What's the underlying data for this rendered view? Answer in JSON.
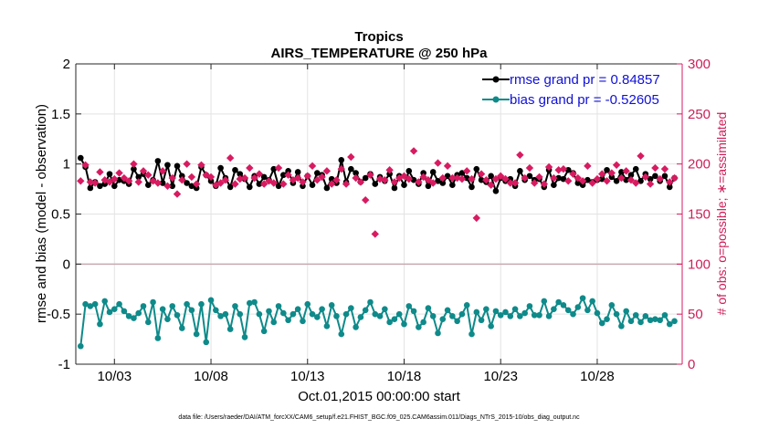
{
  "chart_data": {
    "type": "line",
    "title": "Tropics",
    "subtitle": "AIRS_TEMPERATURE @ 250 hPa",
    "xlabel": "Oct.01,2015 00:00:00 start",
    "ylabel": "rmse and bias (model - observation)",
    "y2label": "# of obs: o=possible; ∗=assimilated",
    "footnote": "data file: /Users/raeder/DAI/ATM_forcXX/CAM6_setup/f.e21.FHIST_BGC.f09_025.CAM6assim.011/Diags_NTrS_2015-10/obs_diag_output.nc",
    "xlim": [
      1,
      32.4
    ],
    "ylim": [
      -1,
      2
    ],
    "y2lim": [
      0,
      300
    ],
    "x_ticks": [
      3,
      8,
      13,
      18,
      23,
      28
    ],
    "x_tick_labels": [
      "10/03",
      "10/08",
      "10/13",
      "10/18",
      "10/23",
      "10/28"
    ],
    "y_ticks": [
      -1,
      -0.5,
      0,
      0.5,
      1,
      1.5,
      2
    ],
    "y_tick_labels": [
      "-1",
      "-0.5",
      "0",
      "0.5",
      "1",
      "1.5",
      "2"
    ],
    "y2_ticks": [
      0,
      50,
      100,
      150,
      200,
      250,
      300
    ],
    "y2_tick_labels": [
      "0",
      "50",
      "100",
      "150",
      "200",
      "250",
      "300"
    ],
    "grid": true,
    "legend_position": "top-right",
    "x": [
      1.25,
      1.5,
      1.75,
      2.0,
      2.25,
      2.5,
      2.75,
      3.0,
      3.25,
      3.5,
      3.75,
      4.0,
      4.25,
      4.5,
      4.75,
      5.0,
      5.25,
      5.5,
      5.75,
      6.0,
      6.25,
      6.5,
      6.75,
      7.0,
      7.25,
      7.5,
      7.75,
      8.0,
      8.25,
      8.5,
      8.75,
      9.0,
      9.25,
      9.5,
      9.75,
      10.0,
      10.25,
      10.5,
      10.75,
      11.0,
      11.25,
      11.5,
      11.75,
      12.0,
      12.25,
      12.5,
      12.75,
      13.0,
      13.25,
      13.5,
      13.75,
      14.0,
      14.25,
      14.5,
      14.75,
      15.0,
      15.25,
      15.5,
      15.75,
      16.0,
      16.25,
      16.5,
      16.75,
      17.0,
      17.25,
      17.5,
      17.75,
      18.0,
      18.25,
      18.5,
      18.75,
      19.0,
      19.25,
      19.5,
      19.75,
      20.0,
      20.25,
      20.5,
      20.75,
      21.0,
      21.25,
      21.5,
      21.75,
      22.0,
      22.25,
      22.5,
      22.75,
      23.0,
      23.25,
      23.5,
      23.75,
      24.0,
      24.25,
      24.5,
      24.75,
      25.0,
      25.25,
      25.5,
      25.75,
      26.0,
      26.25,
      26.5,
      26.75,
      27.0,
      27.25,
      27.5,
      27.75,
      28.0,
      28.25,
      28.5,
      28.75,
      29.0,
      29.25,
      29.5,
      29.75,
      30.0,
      30.25,
      30.5,
      30.75,
      31.0,
      31.25,
      31.5,
      31.75,
      32.0
    ],
    "series": [
      {
        "name": "rmse grand pr = 0.84857",
        "color": "#000000",
        "axis": "left",
        "marker": "circle",
        "values": [
          1.06,
          0.97,
          0.76,
          0.82,
          0.78,
          0.8,
          0.9,
          0.78,
          0.84,
          0.83,
          0.8,
          0.95,
          0.87,
          0.9,
          0.79,
          0.84,
          1.03,
          0.81,
          0.99,
          0.78,
          0.98,
          0.88,
          0.81,
          0.78,
          0.76,
          0.97,
          0.89,
          0.83,
          0.78,
          0.96,
          0.86,
          0.77,
          0.94,
          0.9,
          0.85,
          0.77,
          0.88,
          0.8,
          0.87,
          0.84,
          0.95,
          0.78,
          0.89,
          0.93,
          0.81,
          0.92,
          0.78,
          0.88,
          0.79,
          0.91,
          0.89,
          0.76,
          0.85,
          0.81,
          1.04,
          0.82,
          0.95,
          0.91,
          0.82,
          0.86,
          0.9,
          0.8,
          0.87,
          0.83,
          0.9,
          0.76,
          0.88,
          0.79,
          0.93,
          0.84,
          0.8,
          0.91,
          0.78,
          0.92,
          0.83,
          0.81,
          0.88,
          0.79,
          0.89,
          0.91,
          0.86,
          0.77,
          0.95,
          0.84,
          0.82,
          0.88,
          0.73,
          0.86,
          0.83,
          0.85,
          0.78,
          0.93,
          0.84,
          0.88,
          0.84,
          0.85,
          0.77,
          0.94,
          0.79,
          0.86,
          0.85,
          0.94,
          0.91,
          0.81,
          0.79,
          0.84,
          0.82,
          0.84,
          0.85,
          0.94,
          0.87,
          0.83,
          0.92,
          0.84,
          0.89,
          0.95,
          0.83,
          0.9,
          0.85,
          0.88,
          0.83,
          0.88,
          0.77,
          0.86
        ]
      },
      {
        "name": "bias grand pr = -0.52605",
        "color": "#0f8a8a",
        "axis": "left",
        "marker": "circle",
        "values": [
          -0.82,
          -0.4,
          -0.42,
          -0.4,
          -0.6,
          -0.37,
          -0.48,
          -0.45,
          -0.4,
          -0.47,
          -0.52,
          -0.54,
          -0.49,
          -0.42,
          -0.58,
          -0.38,
          -0.74,
          -0.45,
          -0.55,
          -0.42,
          -0.51,
          -0.64,
          -0.4,
          -0.46,
          -0.7,
          -0.4,
          -0.78,
          -0.36,
          -0.46,
          -0.52,
          -0.5,
          -0.65,
          -0.42,
          -0.5,
          -0.73,
          -0.39,
          -0.38,
          -0.5,
          -0.67,
          -0.47,
          -0.58,
          -0.42,
          -0.49,
          -0.56,
          -0.5,
          -0.45,
          -0.57,
          -0.4,
          -0.5,
          -0.53,
          -0.45,
          -0.62,
          -0.41,
          -0.52,
          -0.7,
          -0.5,
          -0.44,
          -0.63,
          -0.53,
          -0.46,
          -0.38,
          -0.5,
          -0.52,
          -0.45,
          -0.58,
          -0.55,
          -0.5,
          -0.6,
          -0.42,
          -0.47,
          -0.63,
          -0.58,
          -0.44,
          -0.52,
          -0.69,
          -0.55,
          -0.46,
          -0.52,
          -0.57,
          -0.5,
          -0.41,
          -0.7,
          -0.48,
          -0.56,
          -0.45,
          -0.62,
          -0.47,
          -0.51,
          -0.48,
          -0.52,
          -0.45,
          -0.52,
          -0.49,
          -0.42,
          -0.51,
          -0.51,
          -0.37,
          -0.52,
          -0.45,
          -0.38,
          -0.41,
          -0.46,
          -0.5,
          -0.43,
          -0.34,
          -0.46,
          -0.37,
          -0.49,
          -0.59,
          -0.55,
          -0.41,
          -0.5,
          -0.62,
          -0.47,
          -0.57,
          -0.51,
          -0.58,
          -0.52,
          -0.56,
          -0.55,
          -0.56,
          -0.51,
          -0.6,
          -0.57
        ]
      },
      {
        "name": "# of obs (assimilated)",
        "color": "#d81b60",
        "axis": "right",
        "marker": "star",
        "values": [
          183,
          199,
          182,
          181,
          192,
          184,
          182,
          185,
          191,
          186,
          183,
          200,
          182,
          193,
          189,
          183,
          181,
          193,
          178,
          186,
          170,
          184,
          200,
          187,
          180,
          199,
          189,
          187,
          179,
          181,
          184,
          206,
          180,
          185,
          186,
          196,
          186,
          190,
          180,
          183,
          181,
          196,
          180,
          189,
          184,
          186,
          182,
          188,
          198,
          184,
          187,
          193,
          180,
          184,
          195,
          180,
          207,
          186,
          182,
          164,
          189,
          130,
          185,
          184,
          194,
          182,
          186,
          188,
          185,
          213,
          182,
          187,
          184,
          181,
          201,
          186,
          198,
          186,
          186,
          185,
          193,
          185,
          146,
          190,
          184,
          179,
          185,
          188,
          185,
          181,
          181,
          209,
          186,
          196,
          181,
          187,
          180,
          197,
          186,
          194,
          195,
          183,
          190,
          186,
          183,
          198,
          181,
          185,
          190,
          183,
          191,
          199,
          186,
          193,
          184,
          181,
          208,
          187,
          180,
          196,
          185,
          195,
          182,
          186
        ]
      }
    ]
  }
}
